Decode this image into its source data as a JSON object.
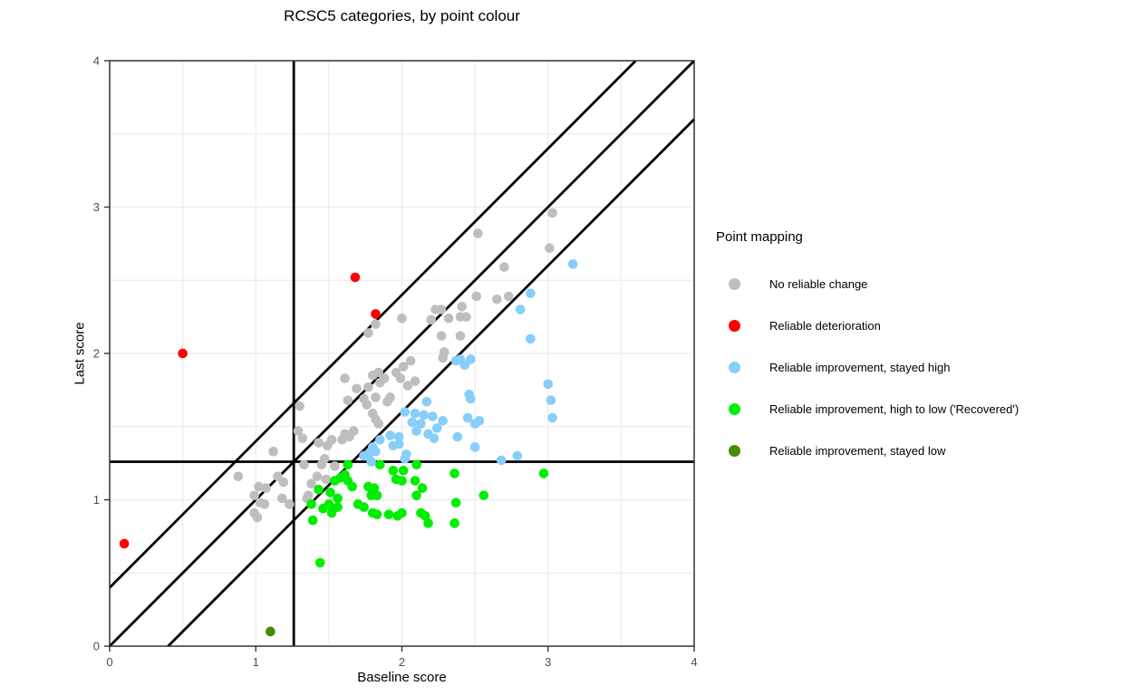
{
  "chart_data": {
    "type": "scatter",
    "title": "RCSC5 categories, by point colour",
    "xlabel": "Baseline score",
    "ylabel": "Last score",
    "xlim": [
      0,
      4
    ],
    "ylim": [
      0,
      4
    ],
    "x_ticks": [
      "0",
      "1",
      "2",
      "3",
      "4"
    ],
    "y_ticks": [
      "0",
      "1",
      "2",
      "3",
      "4"
    ],
    "grid": {
      "on": true,
      "interval": 0.5,
      "color": "#ebebeb"
    },
    "reference_lines": {
      "color": "#000000",
      "vertical_cutoff_x": 1.26,
      "horizontal_cutoff_y": 1.26,
      "identity_diagonal": true,
      "reliable_change_offset": 0.4
    },
    "legend": {
      "title": "Point mapping",
      "position": "right"
    },
    "series": [
      {
        "name": "No reliable change",
        "color": "#BEBEBE",
        "points": [
          [
            0.88,
            1.16
          ],
          [
            0.99,
            0.91
          ],
          [
            0.99,
            1.03
          ],
          [
            1.01,
            0.88
          ],
          [
            1.02,
            1.09
          ],
          [
            1.03,
            0.98
          ],
          [
            1.06,
            0.97
          ],
          [
            1.07,
            1.08
          ],
          [
            1.12,
            1.33
          ],
          [
            1.15,
            1.16
          ],
          [
            1.18,
            1.01
          ],
          [
            1.19,
            1.12
          ],
          [
            1.23,
            0.97
          ],
          [
            1.29,
            1.47
          ],
          [
            1.3,
            1.64
          ],
          [
            1.32,
            1.42
          ],
          [
            1.33,
            1.24
          ],
          [
            1.35,
            1.01
          ],
          [
            1.36,
            1.03
          ],
          [
            1.38,
            1.11
          ],
          [
            1.42,
            1.16
          ],
          [
            1.43,
            1.39
          ],
          [
            1.45,
            1.24
          ],
          [
            1.47,
            1.28
          ],
          [
            1.48,
            1.14
          ],
          [
            1.49,
            1.37
          ],
          [
            1.52,
            1.41
          ],
          [
            1.54,
            1.23
          ],
          [
            1.59,
            1.41
          ],
          [
            1.61,
            1.45
          ],
          [
            1.61,
            1.83
          ],
          [
            1.63,
            1.68
          ],
          [
            1.64,
            1.43
          ],
          [
            1.67,
            1.47
          ],
          [
            1.69,
            1.76
          ],
          [
            1.74,
            1.69
          ],
          [
            1.76,
            1.65
          ],
          [
            1.77,
            1.77
          ],
          [
            1.77,
            2.14
          ],
          [
            1.8,
            1.59
          ],
          [
            1.8,
            1.85
          ],
          [
            1.82,
            1.55
          ],
          [
            1.82,
            1.7
          ],
          [
            1.82,
            2.2
          ],
          [
            1.84,
            1.52
          ],
          [
            1.84,
            1.87
          ],
          [
            1.85,
            1.8
          ],
          [
            1.88,
            1.83
          ],
          [
            1.9,
            1.67
          ],
          [
            1.92,
            1.7
          ],
          [
            1.96,
            1.87
          ],
          [
            1.99,
            1.83
          ],
          [
            2.0,
            2.24
          ],
          [
            2.01,
            1.91
          ],
          [
            2.04,
            1.78
          ],
          [
            2.06,
            1.95
          ],
          [
            2.09,
            1.81
          ],
          [
            2.2,
            2.23
          ],
          [
            2.23,
            2.3
          ],
          [
            2.27,
            2.12
          ],
          [
            2.27,
            2.3
          ],
          [
            2.28,
            1.97
          ],
          [
            2.29,
            2.01
          ],
          [
            2.32,
            2.24
          ],
          [
            2.4,
            2.12
          ],
          [
            2.4,
            2.25
          ],
          [
            2.41,
            2.32
          ],
          [
            2.44,
            2.25
          ],
          [
            2.51,
            2.39
          ],
          [
            2.52,
            2.82
          ],
          [
            2.65,
            2.37
          ],
          [
            2.7,
            2.59
          ],
          [
            2.73,
            2.39
          ],
          [
            3.01,
            2.72
          ],
          [
            3.03,
            2.96
          ]
        ]
      },
      {
        "name": "Reliable deterioration",
        "color": "#FF0000",
        "points": [
          [
            0.1,
            0.7
          ],
          [
            0.5,
            2.0
          ],
          [
            1.68,
            2.52
          ],
          [
            1.82,
            2.27
          ]
        ]
      },
      {
        "name": "Reliable improvement, stayed high",
        "color": "#87CEFA",
        "points": [
          [
            1.74,
            1.3
          ],
          [
            1.78,
            1.32
          ],
          [
            1.79,
            1.26
          ],
          [
            1.8,
            1.36
          ],
          [
            1.82,
            1.33
          ],
          [
            1.85,
            1.41
          ],
          [
            1.92,
            1.44
          ],
          [
            1.94,
            1.37
          ],
          [
            1.98,
            1.38
          ],
          [
            1.98,
            1.43
          ],
          [
            2.02,
            1.28
          ],
          [
            2.02,
            1.6
          ],
          [
            2.03,
            1.31
          ],
          [
            2.07,
            1.53
          ],
          [
            2.09,
            1.59
          ],
          [
            2.1,
            1.47
          ],
          [
            2.13,
            1.52
          ],
          [
            2.15,
            1.58
          ],
          [
            2.17,
            1.67
          ],
          [
            2.18,
            1.45
          ],
          [
            2.21,
            1.57
          ],
          [
            2.22,
            1.42
          ],
          [
            2.24,
            1.49
          ],
          [
            2.28,
            1.54
          ],
          [
            2.37,
            1.95
          ],
          [
            2.38,
            1.43
          ],
          [
            2.4,
            1.96
          ],
          [
            2.43,
            1.92
          ],
          [
            2.45,
            1.56
          ],
          [
            2.46,
            1.72
          ],
          [
            2.47,
            1.69
          ],
          [
            2.47,
            1.96
          ],
          [
            2.5,
            1.36
          ],
          [
            2.5,
            1.52
          ],
          [
            2.53,
            1.54
          ],
          [
            2.68,
            1.27
          ],
          [
            2.79,
            1.3
          ],
          [
            2.81,
            2.3
          ],
          [
            2.88,
            2.1
          ],
          [
            2.88,
            2.41
          ],
          [
            3.0,
            1.79
          ],
          [
            3.02,
            1.68
          ],
          [
            3.03,
            1.56
          ],
          [
            3.17,
            2.61
          ]
        ]
      },
      {
        "name": "Reliable improvement, high to low ('Recovered')",
        "color": "#00EE00",
        "points": [
          [
            1.38,
            0.97
          ],
          [
            1.39,
            0.86
          ],
          [
            1.43,
            1.07
          ],
          [
            1.44,
            0.57
          ],
          [
            1.46,
            0.94
          ],
          [
            1.5,
            0.97
          ],
          [
            1.51,
            1.05
          ],
          [
            1.52,
            0.91
          ],
          [
            1.53,
            0.94
          ],
          [
            1.54,
            1.13
          ],
          [
            1.56,
            0.95
          ],
          [
            1.56,
            1.01
          ],
          [
            1.58,
            1.15
          ],
          [
            1.61,
            1.17
          ],
          [
            1.63,
            1.13
          ],
          [
            1.63,
            1.24
          ],
          [
            1.66,
            1.09
          ],
          [
            1.7,
            0.97
          ],
          [
            1.74,
            0.95
          ],
          [
            1.77,
            1.09
          ],
          [
            1.79,
            1.03
          ],
          [
            1.8,
            0.91
          ],
          [
            1.81,
            1.08
          ],
          [
            1.83,
            0.9
          ],
          [
            1.83,
            1.03
          ],
          [
            1.85,
            1.24
          ],
          [
            1.91,
            0.9
          ],
          [
            1.94,
            1.2
          ],
          [
            1.96,
            1.14
          ],
          [
            1.97,
            0.89
          ],
          [
            2.0,
            0.91
          ],
          [
            2.0,
            1.13
          ],
          [
            2.01,
            1.2
          ],
          [
            2.09,
            1.13
          ],
          [
            2.1,
            1.03
          ],
          [
            2.1,
            1.24
          ],
          [
            2.13,
            0.91
          ],
          [
            2.14,
            1.08
          ],
          [
            2.16,
            0.89
          ],
          [
            2.18,
            0.84
          ],
          [
            2.36,
            0.84
          ],
          [
            2.36,
            1.18
          ],
          [
            2.37,
            0.98
          ],
          [
            2.56,
            1.03
          ],
          [
            2.97,
            1.18
          ]
        ]
      },
      {
        "name": "Reliable improvement, stayed low",
        "color": "#458B00",
        "points": [
          [
            1.1,
            0.1
          ]
        ]
      }
    ]
  }
}
